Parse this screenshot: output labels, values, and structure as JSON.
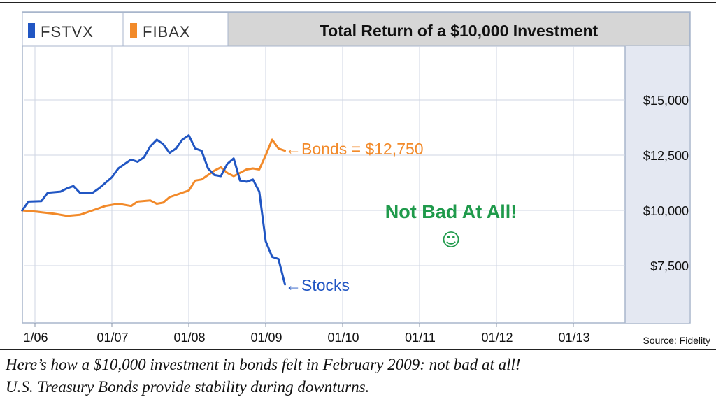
{
  "legend": [
    {
      "label": "FSTVX",
      "color": "#2156c3"
    },
    {
      "label": "FIBAX",
      "color": "#f28a2a"
    }
  ],
  "chart_data": {
    "type": "line",
    "title": "Total Return of a $10,000 Investment",
    "x_tick_labels": [
      "1/06",
      "01/07",
      "01/08",
      "01/09",
      "01/10",
      "01/11",
      "01/12",
      "01/13"
    ],
    "y_tick_labels": [
      "$15,000",
      "$12,500",
      "$10,000",
      "$7,500"
    ],
    "y_ticks": [
      15000,
      12500,
      10000,
      7500
    ],
    "ylim": [
      5000,
      17500
    ],
    "xlim": [
      "2005-11",
      "2013-10"
    ],
    "grid": true,
    "series": [
      {
        "name": "FSTVX",
        "color": "#2156c3",
        "points": [
          [
            "2005-11",
            10000
          ],
          [
            "2005-12",
            10400
          ],
          [
            "2006-02",
            10420
          ],
          [
            "2006-03",
            10800
          ],
          [
            "2006-05",
            10850
          ],
          [
            "2006-06",
            11000
          ],
          [
            "2006-07",
            11100
          ],
          [
            "2006-08",
            10800
          ],
          [
            "2006-10",
            10800
          ],
          [
            "2006-11",
            11000
          ],
          [
            "2007-01",
            11500
          ],
          [
            "2007-02",
            11900
          ],
          [
            "2007-03",
            12100
          ],
          [
            "2007-04",
            12300
          ],
          [
            "2007-05",
            12200
          ],
          [
            "2007-06",
            12400
          ],
          [
            "2007-07",
            12900
          ],
          [
            "2007-08",
            13200
          ],
          [
            "2007-09",
            13000
          ],
          [
            "2007-10",
            12600
          ],
          [
            "2007-11",
            12800
          ],
          [
            "2007-12",
            13200
          ],
          [
            "2008-01",
            13400
          ],
          [
            "2008-02",
            12800
          ],
          [
            "2008-03",
            12700
          ],
          [
            "2008-04",
            11900
          ],
          [
            "2008-05",
            11600
          ],
          [
            "2008-06",
            11550
          ],
          [
            "2008-07",
            12100
          ],
          [
            "2008-08",
            12350
          ],
          [
            "2008-09",
            11350
          ],
          [
            "2008-10",
            11300
          ],
          [
            "2008-11",
            11400
          ],
          [
            "2008-12",
            10850
          ],
          [
            "2009-01",
            8600
          ],
          [
            "2009-02",
            7900
          ],
          [
            "2009-03",
            7800
          ],
          [
            "2009-04",
            6650
          ]
        ]
      },
      {
        "name": "FIBAX",
        "color": "#f28a2a",
        "points": [
          [
            "2005-11",
            10000
          ],
          [
            "2006-01",
            9950
          ],
          [
            "2006-04",
            9850
          ],
          [
            "2006-06",
            9750
          ],
          [
            "2006-08",
            9800
          ],
          [
            "2006-10",
            10000
          ],
          [
            "2006-12",
            10200
          ],
          [
            "2007-02",
            10300
          ],
          [
            "2007-04",
            10200
          ],
          [
            "2007-05",
            10400
          ],
          [
            "2007-07",
            10450
          ],
          [
            "2007-08",
            10300
          ],
          [
            "2007-09",
            10350
          ],
          [
            "2007-10",
            10600
          ],
          [
            "2007-12",
            10800
          ],
          [
            "2008-01",
            10900
          ],
          [
            "2008-02",
            11350
          ],
          [
            "2008-03",
            11400
          ],
          [
            "2008-04",
            11600
          ],
          [
            "2008-05",
            11800
          ],
          [
            "2008-06",
            11950
          ],
          [
            "2008-07",
            11700
          ],
          [
            "2008-08",
            11550
          ],
          [
            "2008-09",
            11700
          ],
          [
            "2008-10",
            11850
          ],
          [
            "2008-11",
            11900
          ],
          [
            "2008-12",
            11850
          ],
          [
            "2009-01",
            12500
          ],
          [
            "2009-02",
            13200
          ],
          [
            "2009-03",
            12800
          ],
          [
            "2009-04",
            12700
          ]
        ]
      }
    ],
    "annotations": [
      {
        "text": "←Bonds = $12,750",
        "color": "#f28a2a"
      },
      {
        "text": "←Stocks",
        "color": "#2156c3"
      },
      {
        "text": "Not Bad At All!",
        "color": "#1f9a4b"
      },
      {
        "text": "☺",
        "color": "#1f9a4b"
      }
    ]
  },
  "source": "Source: Fidelity",
  "caption": {
    "line1": "Here’s how a $10,000 investment in bonds felt in February 2009: not bad at all!",
    "line2": "U.S. Treasury Bonds provide stability during downturns."
  }
}
